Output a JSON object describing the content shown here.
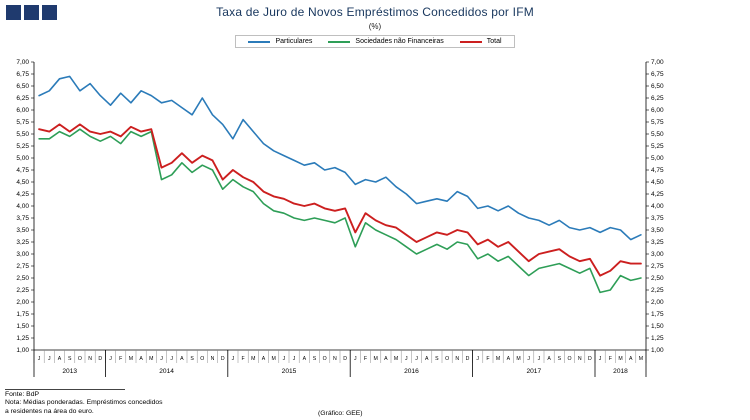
{
  "header": {
    "logo_squares": 3
  },
  "footer": {
    "fonte": "Fonte: BdP",
    "nota_line1": "Nota: Médias ponderadas.  Empréstimos concedidos",
    "nota_line2": "a residentes na área do euro.",
    "credit": "(Gráfico: GEE)"
  },
  "chart_data": {
    "type": "line",
    "title": "Taxa de Juro de Novos Empréstimos Concedidos por IFM",
    "subtitle": "(%)",
    "xlabel": "",
    "ylabel": "",
    "ylim": [
      1.0,
      7.0
    ],
    "ytick_step": 0.25,
    "grid": false,
    "legend_position": "top",
    "x_months": [
      "J",
      "J",
      "A",
      "S",
      "O",
      "N",
      "D",
      "J",
      "F",
      "M",
      "A",
      "M",
      "J",
      "J",
      "A",
      "S",
      "O",
      "N",
      "D",
      "J",
      "F",
      "M",
      "A",
      "M",
      "J",
      "J",
      "A",
      "S",
      "O",
      "N",
      "D",
      "J",
      "F",
      "M",
      "A",
      "M",
      "J",
      "J",
      "A",
      "S",
      "O",
      "N",
      "D",
      "J",
      "F",
      "M",
      "A",
      "M",
      "J",
      "J",
      "A",
      "S",
      "O",
      "N",
      "D",
      "J",
      "F",
      "M",
      "A",
      "M"
    ],
    "x_years": [
      {
        "label": "2013",
        "span": 7
      },
      {
        "label": "2014",
        "span": 12
      },
      {
        "label": "2015",
        "span": 12
      },
      {
        "label": "2016",
        "span": 12
      },
      {
        "label": "2017",
        "span": 12
      },
      {
        "label": "2018",
        "span": 5
      }
    ],
    "series": [
      {
        "name": "Particulares",
        "color": "#2b7bb9",
        "values": [
          6.3,
          6.4,
          6.65,
          6.7,
          6.4,
          6.55,
          6.3,
          6.1,
          6.35,
          6.15,
          6.4,
          6.3,
          6.15,
          6.2,
          6.05,
          5.9,
          6.25,
          5.9,
          5.7,
          5.4,
          5.8,
          5.55,
          5.3,
          5.15,
          5.05,
          4.95,
          4.85,
          4.9,
          4.75,
          4.8,
          4.7,
          4.45,
          4.55,
          4.5,
          4.6,
          4.4,
          4.25,
          4.05,
          4.1,
          4.15,
          4.1,
          4.3,
          4.2,
          3.95,
          4.0,
          3.9,
          4.0,
          3.85,
          3.75,
          3.7,
          3.6,
          3.7,
          3.55,
          3.5,
          3.55,
          3.45,
          3.55,
          3.5,
          3.3,
          3.4
        ]
      },
      {
        "name": "Sociedades não Financeiras",
        "color": "#2e9e57",
        "values": [
          5.4,
          5.4,
          5.55,
          5.45,
          5.6,
          5.45,
          5.35,
          5.45,
          5.3,
          5.55,
          5.45,
          5.55,
          4.55,
          4.65,
          4.9,
          4.7,
          4.85,
          4.75,
          4.35,
          4.55,
          4.4,
          4.3,
          4.05,
          3.9,
          3.85,
          3.75,
          3.7,
          3.75,
          3.7,
          3.65,
          3.75,
          3.15,
          3.65,
          3.5,
          3.4,
          3.3,
          3.15,
          3.0,
          3.1,
          3.2,
          3.1,
          3.25,
          3.2,
          2.9,
          3.0,
          2.85,
          2.95,
          2.75,
          2.55,
          2.7,
          2.75,
          2.8,
          2.7,
          2.6,
          2.7,
          2.2,
          2.25,
          2.55,
          2.45,
          2.5
        ]
      },
      {
        "name": "Total",
        "color": "#cc1f1f",
        "values": [
          5.6,
          5.55,
          5.7,
          5.55,
          5.7,
          5.55,
          5.5,
          5.55,
          5.45,
          5.65,
          5.55,
          5.6,
          4.8,
          4.9,
          5.1,
          4.9,
          5.05,
          4.95,
          4.55,
          4.75,
          4.6,
          4.5,
          4.3,
          4.2,
          4.15,
          4.05,
          4.0,
          4.05,
          3.95,
          3.9,
          3.95,
          3.45,
          3.85,
          3.7,
          3.6,
          3.55,
          3.4,
          3.25,
          3.35,
          3.45,
          3.4,
          3.5,
          3.45,
          3.2,
          3.3,
          3.15,
          3.25,
          3.05,
          2.85,
          3.0,
          3.05,
          3.1,
          2.95,
          2.85,
          2.9,
          2.55,
          2.65,
          2.85,
          2.8,
          2.8
        ]
      }
    ]
  }
}
